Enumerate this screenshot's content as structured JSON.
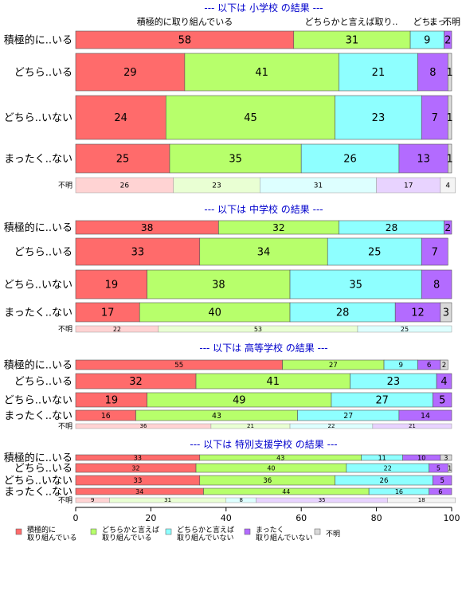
{
  "chart_data": {
    "type": "bar",
    "orientation": "horizontal",
    "stacked": "percent",
    "xlim": [
      0,
      100
    ],
    "xticks": [
      "0",
      "20",
      "40",
      "60",
      "80",
      "100"
    ],
    "colors": [
      "#ff6b6b",
      "#b7ff6b",
      "#8effff",
      "#b36bff",
      "#d9d9d9"
    ],
    "legend": [
      {
        "line1": "積極的に",
        "line2": "取り組んでいる"
      },
      {
        "line1": "どちらかと言えば",
        "line2": "取り組んでいる"
      },
      {
        "line1": "どちらかと言えば",
        "line2": "取り組んでいない"
      },
      {
        "line1": "まったく",
        "line2": "取り組んでいない"
      },
      {
        "line1": "不明",
        "line2": ""
      }
    ],
    "panels": [
      {
        "title": "--- 以下は 小学校 の結果 ---",
        "headers": [
          "積極的に取り組んでいる",
          "どちらかと言えば取り..",
          "どち..",
          "まっ..",
          "不明"
        ],
        "rows": [
          {
            "label": "積極的に..いる",
            "values": [
              58,
              31,
              9,
              2,
              0
            ]
          },
          {
            "label": "どちら..いる",
            "values": [
              29,
              41,
              21,
              8,
              1
            ]
          },
          {
            "label": "どちら..いない",
            "values": [
              24,
              45,
              23,
              7,
              1
            ]
          },
          {
            "label": "まったく..ない",
            "values": [
              25,
              35,
              26,
              13,
              1
            ]
          }
        ],
        "missing": {
          "label": "不明",
          "values": [
            26,
            23,
            31,
            17,
            4
          ]
        }
      },
      {
        "title": "--- 以下は 中学校 の結果 ---",
        "headers": [],
        "rows": [
          {
            "label": "積極的に..いる",
            "values": [
              38,
              32,
              28,
              2,
              0
            ]
          },
          {
            "label": "どちら..いる",
            "values": [
              33,
              34,
              25,
              7,
              0
            ]
          },
          {
            "label": "どちら..いない",
            "values": [
              19,
              38,
              35,
              8,
              0
            ]
          },
          {
            "label": "まったく..ない",
            "values": [
              17,
              40,
              28,
              12,
              3
            ]
          }
        ],
        "missing": {
          "label": "不明",
          "values": [
            22,
            53,
            25,
            0,
            0
          ]
        }
      },
      {
        "title": "--- 以下は 高等学校 の結果 ---",
        "headers": [],
        "rows": [
          {
            "label": "積極的に..いる",
            "values": [
              55,
              27,
              9,
              6,
              2
            ]
          },
          {
            "label": "どちら..いる",
            "values": [
              32,
              41,
              23,
              4,
              0
            ]
          },
          {
            "label": "どちら..いない",
            "values": [
              19,
              49,
              27,
              5,
              0
            ]
          },
          {
            "label": "まったく..ない",
            "values": [
              16,
              43,
              27,
              14,
              0
            ]
          }
        ],
        "missing": {
          "label": "不明",
          "values": [
            36,
            21,
            22,
            21,
            0
          ]
        }
      },
      {
        "title": "--- 以下は 特別支援学校 の結果 ---",
        "headers": [],
        "rows": [
          {
            "label": "積極的に..いる",
            "values": [
              33,
              43,
              11,
              10,
              3
            ]
          },
          {
            "label": "どちら..いる",
            "values": [
              32,
              40,
              22,
              5,
              1
            ]
          },
          {
            "label": "どちら..いない",
            "values": [
              33,
              36,
              26,
              5,
              0
            ]
          },
          {
            "label": "まったく..ない",
            "values": [
              34,
              44,
              16,
              6,
              0
            ]
          }
        ],
        "missing": {
          "label": "不明",
          "values": [
            9,
            31,
            8,
            35,
            18
          ]
        }
      }
    ]
  }
}
